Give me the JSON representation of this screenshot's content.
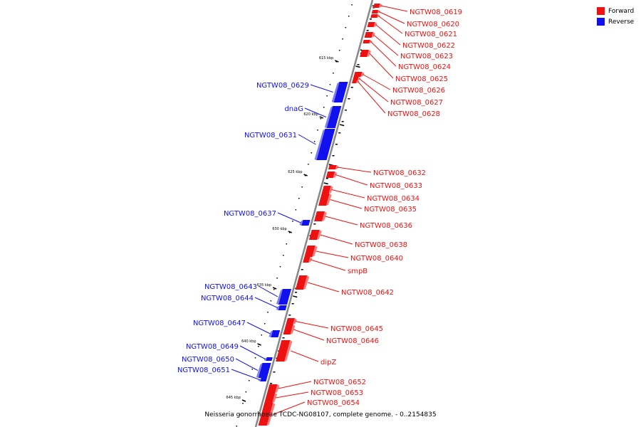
{
  "colors": {
    "forward": "#ee1111",
    "reverse": "#1111ee",
    "axis": "#888888"
  },
  "legend": [
    {
      "label": "Forward",
      "color": "#ee1111"
    },
    {
      "label": "Reverse",
      "color": "#1111ee"
    }
  ],
  "caption": "Neisseria gonorrhoeae TCDC-NG08107, complete genome. - 0..2154835",
  "ticks": [
    "615 kbp",
    "620 kbp",
    "625 kbp",
    "630 kbp",
    "635 kbp",
    "640 kbp",
    "645 kbp"
  ],
  "forward_genes": [
    "NGTW08_0619",
    "NGTW08_0620",
    "NGTW08_0621",
    "NGTW08_0622",
    "NGTW08_0623",
    "NGTW08_0624",
    "NGTW08_0625",
    "NGTW08_0626",
    "NGTW08_0627",
    "NGTW08_0628",
    "NGTW08_0632",
    "NGTW08_0633",
    "NGTW08_0634",
    "NGTW08_0635",
    "NGTW08_0636",
    "NGTW08_0638",
    "NGTW08_0640",
    "smpB",
    "NGTW08_0642",
    "NGTW08_0645",
    "NGTW08_0646",
    "dipZ",
    "NGTW08_0652",
    "NGTW08_0653",
    "NGTW08_0654"
  ],
  "reverse_genes": [
    "NGTW08_0629",
    "dnaG",
    "NGTW08_0631",
    "NGTW08_0637",
    "NGTW08_0643",
    "NGTW08_0644",
    "NGTW08_0647",
    "NGTW08_0649",
    "NGTW08_0650",
    "NGTW08_0651"
  ]
}
